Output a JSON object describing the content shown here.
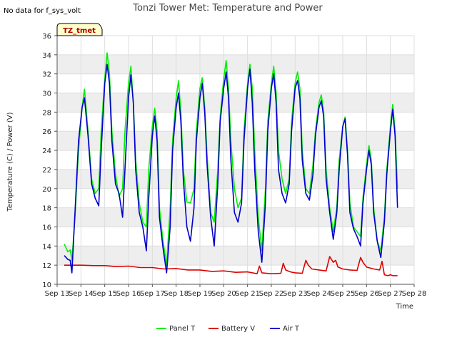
{
  "chart_data": {
    "type": "line",
    "title": "Tonzi Tower Met: Temperature and Power",
    "note": "No data for f_sys_volt",
    "site_badge": "TZ_tmet",
    "xlabel": "Time",
    "ylabel": "Temperature (C) / Power (V)",
    "ylim": [
      10,
      36
    ],
    "xlim": [
      13,
      28
    ],
    "y_ticks": [
      10,
      12,
      14,
      16,
      18,
      20,
      22,
      24,
      26,
      28,
      30,
      32,
      34,
      36
    ],
    "x_ticks": [
      13,
      14,
      15,
      16,
      17,
      18,
      19,
      20,
      21,
      22,
      23,
      24,
      25,
      26,
      27,
      28
    ],
    "x_tick_labels": [
      "Sep 13",
      "Sep 14",
      "Sep 15",
      "Sep 16",
      "Sep 17",
      "Sep 18",
      "Sep 19",
      "Sep 20",
      "Sep 21",
      "Sep 22",
      "Sep 23",
      "Sep 24",
      "Sep 25",
      "Sep 26",
      "Sep 27",
      "Sep 28"
    ],
    "series": [
      {
        "name": "Panel T",
        "color": "#00ee00",
        "x": [
          13.3,
          13.45,
          13.55,
          13.62,
          13.75,
          13.9,
          14.05,
          14.15,
          14.3,
          14.45,
          14.6,
          14.75,
          14.85,
          15.0,
          15.1,
          15.2,
          15.3,
          15.45,
          15.6,
          15.75,
          15.85,
          16.0,
          16.1,
          16.2,
          16.3,
          16.45,
          16.6,
          16.75,
          16.85,
          17.0,
          17.1,
          17.2,
          17.3,
          17.45,
          17.6,
          17.75,
          17.85,
          18.0,
          18.1,
          18.2,
          18.3,
          18.45,
          18.6,
          18.75,
          18.85,
          19.0,
          19.1,
          19.2,
          19.3,
          19.45,
          19.6,
          19.75,
          19.85,
          20.0,
          20.1,
          20.2,
          20.3,
          20.45,
          20.6,
          20.75,
          20.85,
          21.0,
          21.1,
          21.2,
          21.3,
          21.45,
          21.6,
          21.75,
          21.85,
          22.0,
          22.1,
          22.2,
          22.3,
          22.45,
          22.6,
          22.75,
          22.85,
          23.0,
          23.1,
          23.2,
          23.3,
          23.45,
          23.6,
          23.75,
          23.85,
          24.0,
          24.1,
          24.2,
          24.3,
          24.45,
          24.6,
          24.75,
          24.85,
          25.0,
          25.1,
          25.2,
          25.3,
          25.45,
          25.6,
          25.75,
          25.85,
          26.0,
          26.1,
          26.2,
          26.3,
          26.45,
          26.6,
          26.75,
          26.85,
          27.0,
          27.1,
          27.2,
          27.3
        ],
        "y": [
          14.2,
          13.4,
          13.6,
          12.5,
          17.0,
          24.0,
          28.5,
          30.4,
          26.0,
          21.0,
          19.5,
          20.0,
          26.0,
          31.5,
          34.2,
          32.0,
          26.0,
          21.5,
          19.2,
          20.0,
          26.0,
          31.0,
          32.8,
          29.0,
          23.0,
          18.5,
          16.5,
          16.0,
          22.0,
          26.5,
          28.4,
          26.0,
          18.0,
          14.5,
          12.0,
          18.0,
          25.0,
          29.5,
          31.3,
          28.0,
          22.0,
          18.6,
          18.5,
          20.0,
          26.0,
          30.5,
          31.6,
          28.5,
          23.5,
          17.5,
          16.5,
          22.0,
          27.5,
          31.5,
          33.4,
          30.5,
          25.0,
          20.0,
          18.0,
          19.0,
          26.0,
          31.0,
          33.0,
          30.5,
          24.0,
          17.0,
          13.5,
          20.0,
          27.0,
          31.0,
          32.8,
          30.0,
          24.0,
          21.0,
          19.5,
          21.0,
          27.0,
          31.0,
          32.2,
          30.5,
          24.0,
          20.0,
          19.5,
          22.5,
          26.0,
          29.0,
          29.8,
          28.0,
          22.0,
          18.0,
          15.5,
          18.0,
          23.0,
          26.5,
          27.5,
          24.0,
          18.5,
          16.0,
          15.5,
          15.0,
          19.0,
          22.5,
          24.5,
          23.0,
          18.0,
          14.5,
          13.5,
          17.0,
          22.0,
          26.5,
          28.8,
          26.0,
          20.0
        ]
      },
      {
        "name": "Battery V",
        "color": "#dd0000",
        "x": [
          13.3,
          14.0,
          14.5,
          15.0,
          15.5,
          16.0,
          16.5,
          17.0,
          17.5,
          18.0,
          18.5,
          19.0,
          19.5,
          20.0,
          20.5,
          21.0,
          21.4,
          21.5,
          21.6,
          21.8,
          22.0,
          22.4,
          22.5,
          22.6,
          22.8,
          23.0,
          23.3,
          23.45,
          23.55,
          23.7,
          24.0,
          24.3,
          24.45,
          24.6,
          24.7,
          24.8,
          25.0,
          25.3,
          25.6,
          25.75,
          25.85,
          26.0,
          26.3,
          26.55,
          26.65,
          26.75,
          26.9,
          27.0,
          27.1,
          27.3
        ],
        "y": [
          12.0,
          12.0,
          11.95,
          11.95,
          11.85,
          11.9,
          11.75,
          11.75,
          11.6,
          11.65,
          11.5,
          11.5,
          11.35,
          11.4,
          11.25,
          11.3,
          11.1,
          11.9,
          11.2,
          11.15,
          11.1,
          11.15,
          12.2,
          11.5,
          11.3,
          11.2,
          11.15,
          12.5,
          12.0,
          11.6,
          11.5,
          11.4,
          12.9,
          12.3,
          12.5,
          11.8,
          11.6,
          11.5,
          11.45,
          12.8,
          12.3,
          11.8,
          11.6,
          11.5,
          12.4,
          11.0,
          10.9,
          11.0,
          10.9,
          10.9
        ]
      },
      {
        "name": "Air T",
        "color": "#0000cc",
        "x": [
          13.3,
          13.45,
          13.55,
          13.62,
          13.75,
          13.9,
          14.05,
          14.15,
          14.3,
          14.45,
          14.6,
          14.75,
          14.85,
          15.0,
          15.1,
          15.2,
          15.3,
          15.45,
          15.6,
          15.75,
          15.85,
          16.0,
          16.1,
          16.2,
          16.3,
          16.45,
          16.6,
          16.75,
          16.85,
          17.0,
          17.1,
          17.2,
          17.3,
          17.45,
          17.6,
          17.75,
          17.85,
          18.0,
          18.1,
          18.2,
          18.3,
          18.45,
          18.6,
          18.75,
          18.85,
          19.0,
          19.1,
          19.2,
          19.3,
          19.45,
          19.6,
          19.75,
          19.85,
          20.0,
          20.1,
          20.2,
          20.3,
          20.45,
          20.6,
          20.75,
          20.85,
          21.0,
          21.1,
          21.2,
          21.3,
          21.45,
          21.6,
          21.75,
          21.85,
          22.0,
          22.1,
          22.2,
          22.3,
          22.45,
          22.6,
          22.75,
          22.85,
          23.0,
          23.1,
          23.2,
          23.3,
          23.45,
          23.6,
          23.75,
          23.85,
          24.0,
          24.1,
          24.2,
          24.3,
          24.45,
          24.6,
          24.75,
          24.85,
          25.0,
          25.1,
          25.2,
          25.3,
          25.45,
          25.6,
          25.75,
          25.85,
          26.0,
          26.1,
          26.2,
          26.3,
          26.45,
          26.6,
          26.75,
          26.85,
          27.0,
          27.1,
          27.2,
          27.3
        ],
        "y": [
          13.0,
          12.6,
          12.5,
          11.2,
          17.5,
          25.0,
          28.5,
          29.5,
          25.5,
          20.5,
          19.0,
          18.2,
          24.0,
          31.0,
          33.0,
          31.0,
          25.0,
          20.5,
          19.5,
          17.0,
          22.0,
          29.5,
          31.9,
          29.0,
          22.0,
          17.5,
          16.0,
          13.5,
          19.0,
          25.5,
          27.6,
          25.0,
          17.0,
          13.8,
          11.2,
          16.0,
          24.0,
          28.5,
          30.0,
          27.0,
          21.0,
          16.0,
          14.5,
          18.0,
          25.0,
          29.5,
          31.0,
          28.0,
          22.5,
          17.0,
          14.0,
          20.5,
          27.0,
          30.5,
          32.2,
          29.5,
          23.0,
          17.5,
          16.5,
          18.5,
          25.0,
          30.5,
          32.5,
          29.0,
          22.0,
          15.5,
          12.3,
          18.5,
          26.0,
          30.5,
          32.0,
          29.0,
          22.0,
          19.5,
          18.5,
          20.5,
          26.0,
          30.5,
          31.3,
          29.5,
          23.0,
          19.5,
          18.8,
          21.5,
          25.5,
          28.5,
          29.2,
          27.5,
          21.0,
          17.5,
          14.7,
          17.5,
          22.0,
          26.5,
          27.3,
          23.5,
          17.5,
          15.8,
          15.0,
          14.0,
          18.5,
          22.0,
          24.0,
          22.5,
          17.5,
          14.5,
          12.8,
          16.5,
          21.5,
          26.0,
          28.3,
          25.5,
          18.0
        ]
      }
    ]
  }
}
